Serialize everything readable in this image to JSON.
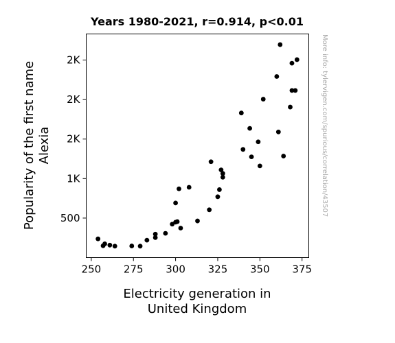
{
  "chart_data": {
    "type": "scatter",
    "title": "Years 1980-2021, r=0.914, p<0.01",
    "xlabel": [
      "Electricity generation in",
      "United Kingdom"
    ],
    "ylabel": [
      "Popularity of the first name",
      "Alexia"
    ],
    "watermark": "More info: tylervigen.com/spurious/correlation/43507",
    "xlim": [
      247,
      379
    ],
    "ylim": [
      0,
      2830
    ],
    "xticks": [
      250,
      275,
      300,
      325,
      350,
      375
    ],
    "xtick_labels": [
      "250",
      "275",
      "300",
      "325",
      "350",
      "375"
    ],
    "yticks": [
      500,
      1000,
      1500,
      2000,
      2500
    ],
    "ytick_labels": [
      "500",
      "1K",
      "2K",
      "2K",
      "2K"
    ],
    "grid": false,
    "marker_color": "#000000",
    "points": [
      [
        254,
        237
      ],
      [
        257,
        150
      ],
      [
        258,
        174
      ],
      [
        261,
        158
      ],
      [
        264,
        145
      ],
      [
        274,
        147
      ],
      [
        279,
        145
      ],
      [
        283,
        220
      ],
      [
        288,
        253
      ],
      [
        288,
        297
      ],
      [
        294,
        307
      ],
      [
        298,
        423
      ],
      [
        300,
        448
      ],
      [
        301,
        455
      ],
      [
        303,
        373
      ],
      [
        300,
        691
      ],
      [
        302,
        870
      ],
      [
        308,
        890
      ],
      [
        313,
        464
      ],
      [
        320,
        605
      ],
      [
        321,
        1213
      ],
      [
        325,
        770
      ],
      [
        326,
        860
      ],
      [
        327,
        1110
      ],
      [
        328,
        1017
      ],
      [
        328,
        1065
      ],
      [
        339,
        1830
      ],
      [
        340,
        1369
      ],
      [
        344,
        1635
      ],
      [
        345,
        1275
      ],
      [
        349,
        1465
      ],
      [
        350,
        1160
      ],
      [
        352,
        2005
      ],
      [
        360,
        2292
      ],
      [
        361,
        1590
      ],
      [
        362,
        2695
      ],
      [
        364,
        1285
      ],
      [
        368,
        1905
      ],
      [
        369,
        2115
      ],
      [
        369,
        2460
      ],
      [
        371,
        2115
      ],
      [
        372,
        2505
      ]
    ]
  }
}
